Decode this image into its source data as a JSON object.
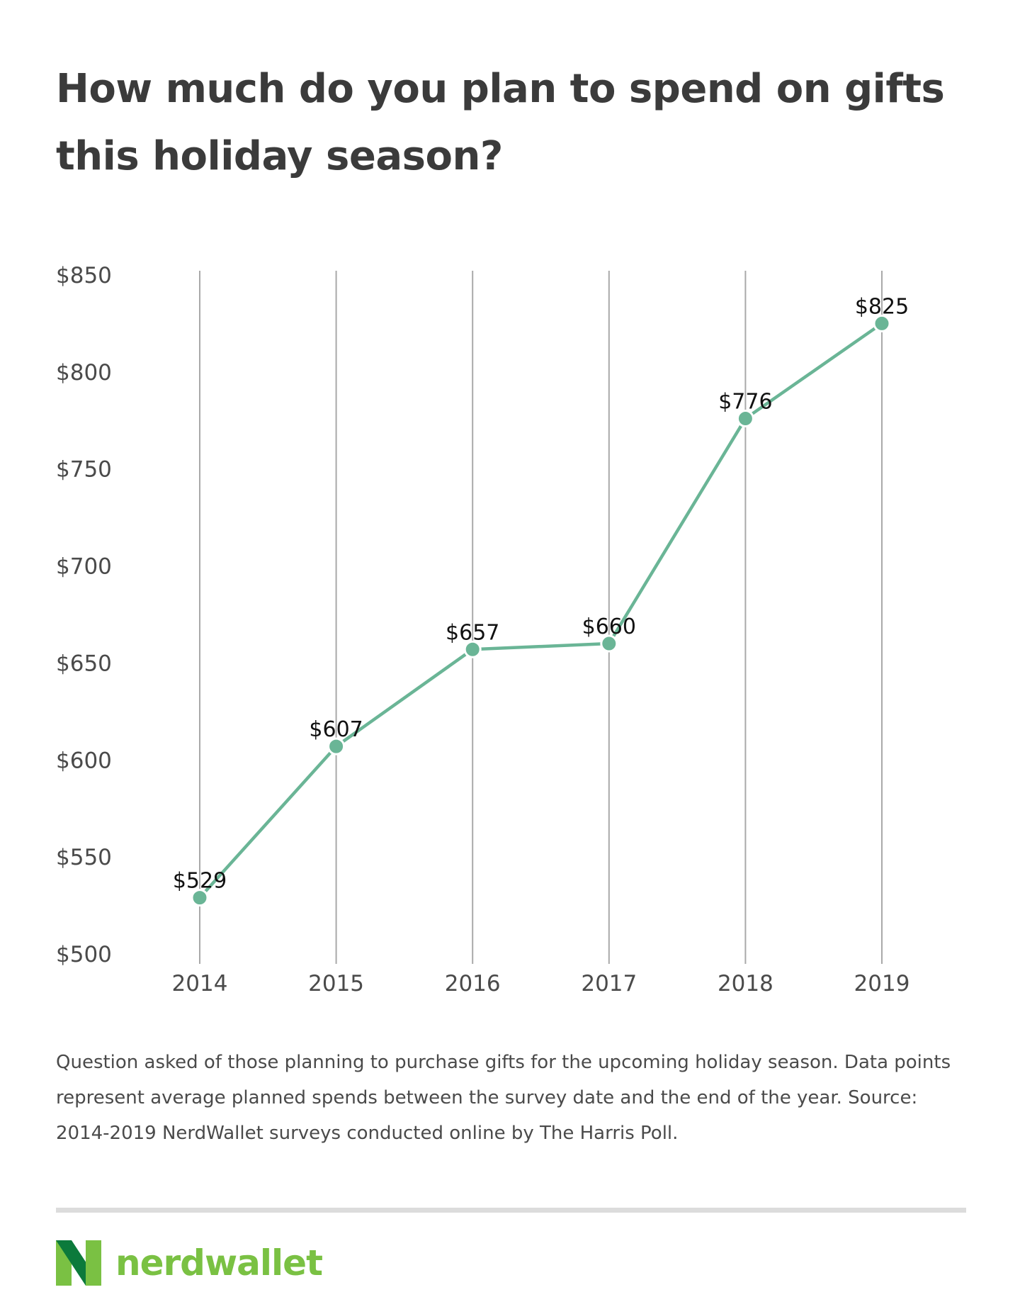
{
  "title": "How much do you plan to spend on gifts this holiday season?",
  "caption": "Question asked of those planning to purchase gifts for the upcoming holiday season. Data points represent average planned spends between the survey date and the end of the year. Source: 2014-2019 NerdWallet surveys conducted online by The Harris Poll.",
  "brand": {
    "name": "nerdwallet",
    "icon": "nerdwallet-logo-icon"
  },
  "colors": {
    "line": "#6ab596",
    "gridline": "#a9a9a9",
    "brand_green": "#7ac143",
    "brand_dark_green": "#0c7a3b",
    "text": "#3b3b3b",
    "divider": "#dcdcdc"
  },
  "chart_data": {
    "type": "line",
    "title": "How much do you plan to spend on gifts this holiday season?",
    "xlabel": "",
    "ylabel": "",
    "categories": [
      "2014",
      "2015",
      "2016",
      "2017",
      "2018",
      "2019"
    ],
    "series": [
      {
        "values": [
          529,
          607,
          657,
          660,
          776,
          825
        ],
        "data_labels": [
          "$529",
          "$607",
          "$657",
          "$660",
          "$776",
          "$825"
        ]
      }
    ],
    "ylim": [
      500,
      850
    ],
    "yticks": [
      500,
      550,
      600,
      650,
      700,
      750,
      800,
      850
    ],
    "ytick_labels": [
      "$500",
      "$550",
      "$600",
      "$650",
      "$700",
      "$750",
      "$800",
      "$850"
    ],
    "grid": "vertical lines at each category",
    "legend": "none"
  }
}
